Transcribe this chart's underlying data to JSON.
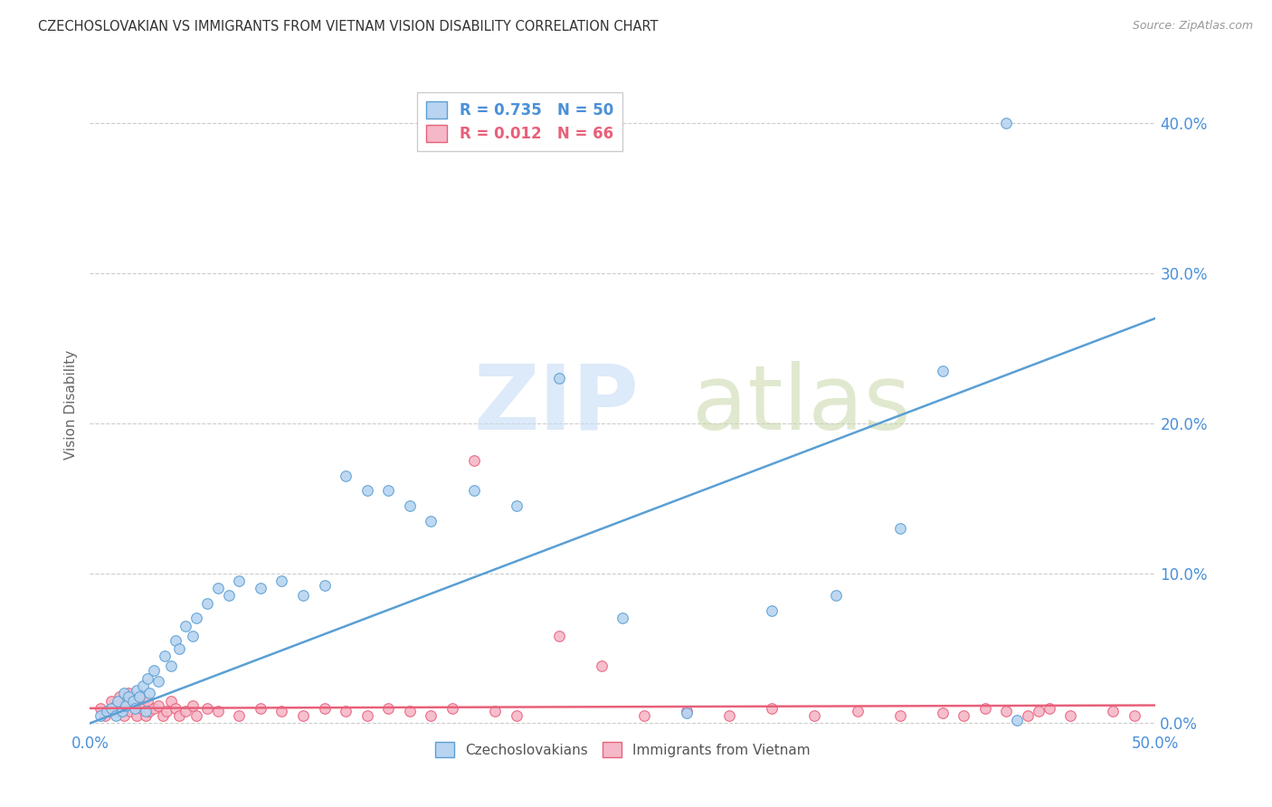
{
  "title": "CZECHOSLOVAKIAN VS IMMIGRANTS FROM VIETNAM VISION DISABILITY CORRELATION CHART",
  "source": "Source: ZipAtlas.com",
  "ylabel": "Vision Disability",
  "xlim": [
    0.0,
    0.5
  ],
  "ylim": [
    -0.005,
    0.43
  ],
  "xticks": [
    0.0,
    0.1,
    0.2,
    0.3,
    0.4,
    0.5
  ],
  "yticks": [
    0.0,
    0.1,
    0.2,
    0.3,
    0.4
  ],
  "ytick_labels_right": [
    "0.0%",
    "10.0%",
    "20.0%",
    "30.0%",
    "40.0%"
  ],
  "xtick_labels": [
    "0.0%",
    "",
    "",
    "",
    "",
    "50.0%"
  ],
  "color_blue": "#b8d4f0",
  "color_blue_dark": "#5a9fd4",
  "color_pink": "#f5b8c8",
  "color_pink_dark": "#e8607a",
  "color_accent": "#4a90d9",
  "R_blue": "0.735",
  "N_blue": "50",
  "R_pink": "0.012",
  "N_pink": "66",
  "legend_labels": [
    "Czechoslovakians",
    "Immigrants from Vietnam"
  ],
  "blue_x": [
    0.005,
    0.008,
    0.01,
    0.012,
    0.013,
    0.015,
    0.016,
    0.017,
    0.018,
    0.02,
    0.021,
    0.022,
    0.023,
    0.025,
    0.026,
    0.027,
    0.028,
    0.03,
    0.032,
    0.035,
    0.038,
    0.04,
    0.042,
    0.045,
    0.048,
    0.05,
    0.055,
    0.06,
    0.065,
    0.07,
    0.08,
    0.09,
    0.1,
    0.11,
    0.12,
    0.13,
    0.14,
    0.15,
    0.16,
    0.18,
    0.2,
    0.22,
    0.25,
    0.28,
    0.32,
    0.35,
    0.38,
    0.4,
    0.43,
    0.435
  ],
  "blue_y": [
    0.005,
    0.008,
    0.01,
    0.005,
    0.015,
    0.008,
    0.02,
    0.012,
    0.018,
    0.015,
    0.01,
    0.022,
    0.018,
    0.025,
    0.008,
    0.03,
    0.02,
    0.035,
    0.028,
    0.045,
    0.038,
    0.055,
    0.05,
    0.065,
    0.058,
    0.07,
    0.08,
    0.09,
    0.085,
    0.095,
    0.09,
    0.095,
    0.085,
    0.092,
    0.165,
    0.155,
    0.155,
    0.145,
    0.135,
    0.155,
    0.145,
    0.23,
    0.07,
    0.007,
    0.075,
    0.085,
    0.13,
    0.235,
    0.4,
    0.002
  ],
  "pink_x": [
    0.005,
    0.007,
    0.009,
    0.01,
    0.012,
    0.013,
    0.014,
    0.015,
    0.016,
    0.017,
    0.018,
    0.019,
    0.02,
    0.021,
    0.022,
    0.023,
    0.024,
    0.025,
    0.026,
    0.027,
    0.028,
    0.03,
    0.032,
    0.034,
    0.036,
    0.038,
    0.04,
    0.042,
    0.045,
    0.048,
    0.05,
    0.055,
    0.06,
    0.07,
    0.08,
    0.09,
    0.1,
    0.11,
    0.12,
    0.13,
    0.14,
    0.15,
    0.16,
    0.17,
    0.18,
    0.19,
    0.2,
    0.22,
    0.24,
    0.26,
    0.28,
    0.3,
    0.32,
    0.34,
    0.36,
    0.38,
    0.4,
    0.41,
    0.42,
    0.43,
    0.44,
    0.445,
    0.45,
    0.46,
    0.48,
    0.49
  ],
  "pink_y": [
    0.01,
    0.005,
    0.008,
    0.015,
    0.012,
    0.008,
    0.018,
    0.01,
    0.005,
    0.015,
    0.02,
    0.008,
    0.012,
    0.015,
    0.005,
    0.018,
    0.01,
    0.012,
    0.005,
    0.015,
    0.008,
    0.01,
    0.012,
    0.005,
    0.008,
    0.015,
    0.01,
    0.005,
    0.008,
    0.012,
    0.005,
    0.01,
    0.008,
    0.005,
    0.01,
    0.008,
    0.005,
    0.01,
    0.008,
    0.005,
    0.01,
    0.008,
    0.005,
    0.01,
    0.175,
    0.008,
    0.005,
    0.058,
    0.038,
    0.005,
    0.008,
    0.005,
    0.01,
    0.005,
    0.008,
    0.005,
    0.007,
    0.005,
    0.01,
    0.008,
    0.005,
    0.008,
    0.01,
    0.005,
    0.008,
    0.005
  ],
  "blue_line_x": [
    0.0,
    0.5
  ],
  "blue_line_y": [
    0.0,
    0.27
  ],
  "pink_line_x": [
    0.0,
    0.5
  ],
  "pink_line_y": [
    0.01,
    0.012
  ]
}
